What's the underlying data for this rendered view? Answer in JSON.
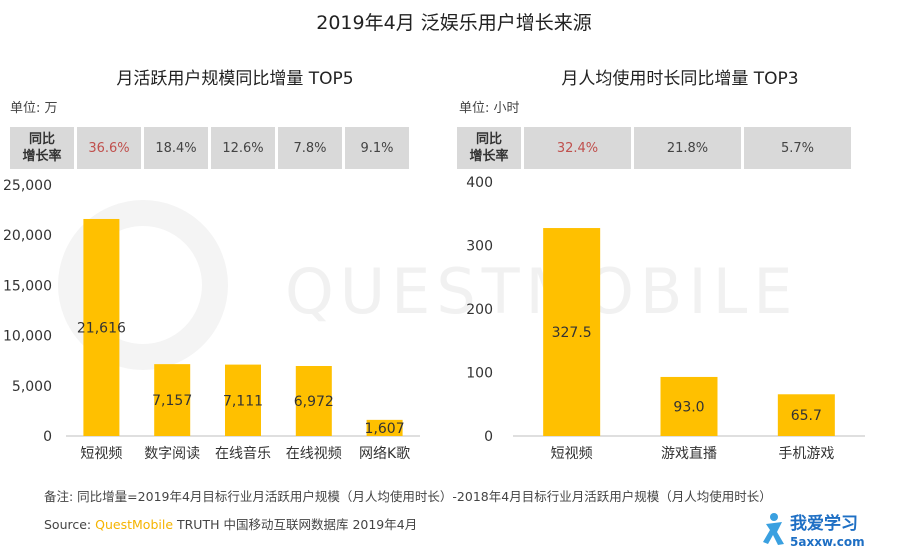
{
  "main_title": "2019年4月 泛娱乐用户增长来源",
  "watermark": "QUESTMOBILE",
  "colors": {
    "bar": "#ffc000",
    "highlight": "#c0504d",
    "table_bg": "#d9d9d9"
  },
  "left": {
    "title": "月活跃用户规模同比增量 TOP5",
    "unit": "单位: 万",
    "yoy_header": "同比\n增长率",
    "yoy": [
      "36.6%",
      "18.4%",
      "12.6%",
      "7.8%",
      "9.1%"
    ]
  },
  "right": {
    "title": "月人均使用时长同比增量 TOP3",
    "unit": "单位: 小时",
    "yoy_header": "同比\n增长率",
    "yoy": [
      "32.4%",
      "21.8%",
      "5.7%"
    ]
  },
  "chart_data": [
    {
      "type": "bar",
      "title": "月活跃用户规模同比增量 TOP5",
      "categories": [
        "短视频",
        "数字阅读",
        "在线音乐",
        "在线视频",
        "网络K歌"
      ],
      "values": [
        21616,
        7157,
        7111,
        6972,
        1607
      ],
      "value_labels": [
        "21,616",
        "7,157",
        "7,111",
        "6,972",
        "1,607"
      ],
      "ylim": [
        0,
        25000
      ],
      "yticks": [
        0,
        5000,
        10000,
        15000,
        20000,
        25000
      ],
      "ytick_labels": [
        "0",
        "5,000",
        "10,000",
        "15,000",
        "20,000",
        "25,000"
      ],
      "grid": false
    },
    {
      "type": "bar",
      "title": "月人均使用时长同比增量 TOP3",
      "categories": [
        "短视频",
        "游戏直播",
        "手机游戏"
      ],
      "values": [
        327.5,
        93.0,
        65.7
      ],
      "value_labels": [
        "327.5",
        "93.0",
        "65.7"
      ],
      "ylim": [
        0,
        400
      ],
      "yticks": [
        0,
        100,
        200,
        300,
        400
      ],
      "ytick_labels": [
        "0",
        "100",
        "200",
        "300",
        "400"
      ],
      "grid": false
    }
  ],
  "footer": {
    "note": "备注:    同比增量=2019年4月目标行业月活跃用户规模（月人均使用时长）-2018年4月目标行业月活跃用户规模（月人均使用时长）",
    "source_prefix": "Source:",
    "source_brand": "QuestMobile",
    "source_rest": " TRUTH 中国移动互联网数据库 2019年4月"
  },
  "logo": {
    "text": "我爱学习",
    "domain": "5axxw.com"
  }
}
